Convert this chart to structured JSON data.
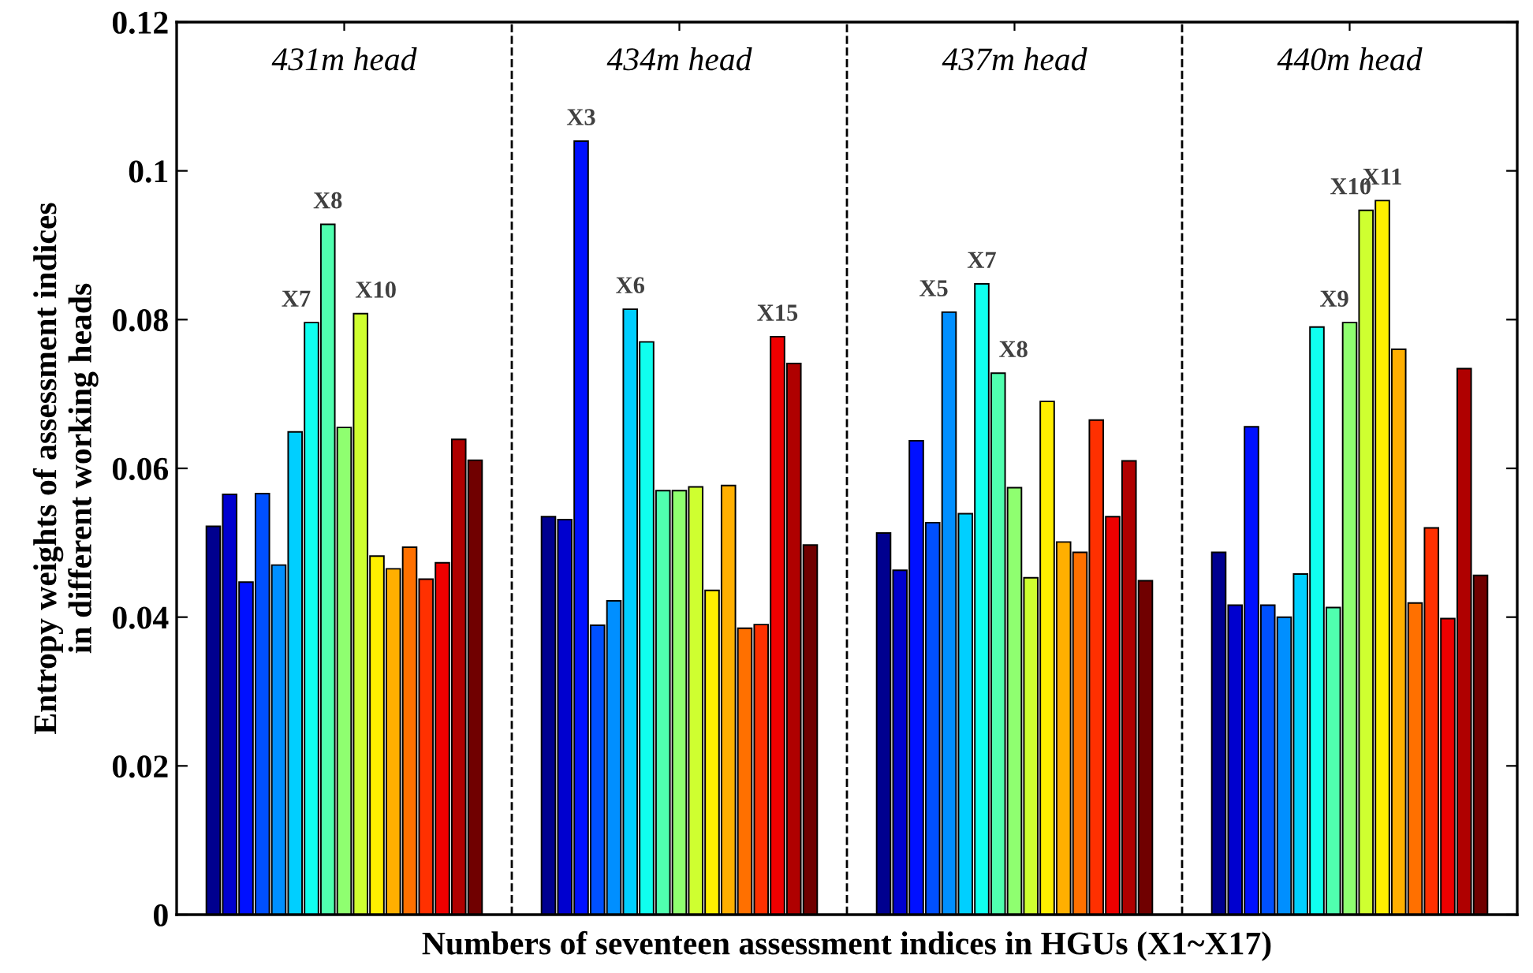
{
  "chart_data": {
    "type": "bar",
    "xlabel": "Numbers of seventeen assessment indices in HGUs (X1~X17)",
    "ylabel": "Entropy weights of assessment indices\nin different working heads",
    "categories": [
      "431m head",
      "434m head",
      "437m head",
      "440m head"
    ],
    "series": [
      {
        "color": "#00008f",
        "values": [
          0.0522,
          0.0535,
          0.0513,
          0.0487
        ]
      },
      {
        "color": "#0000cf",
        "values": [
          0.0565,
          0.0531,
          0.0463,
          0.0416
        ]
      },
      {
        "color": "#0010ff",
        "values": [
          0.0447,
          0.104,
          0.0637,
          0.0656
        ],
        "value_labels": [
          null,
          "X3",
          null,
          null
        ]
      },
      {
        "color": "#0050ff",
        "values": [
          0.0566,
          0.0389,
          0.0527,
          0.0416
        ]
      },
      {
        "color": "#008fff",
        "values": [
          0.047,
          0.0422,
          0.081,
          0.04
        ],
        "value_labels": [
          null,
          null,
          "X5",
          null
        ]
      },
      {
        "color": "#00cfff",
        "values": [
          0.0649,
          0.0814,
          0.0539,
          0.0458
        ],
        "value_labels": [
          null,
          "X6",
          null,
          null
        ]
      },
      {
        "color": "#10ffef",
        "values": [
          0.0796,
          0.077,
          0.0848,
          0.079
        ],
        "value_labels": [
          "X7",
          null,
          "X7",
          null
        ]
      },
      {
        "color": "#50ffaf",
        "values": [
          0.0928,
          0.057,
          0.0728,
          0.0413
        ],
        "value_labels": [
          "X8",
          null,
          "X8",
          null
        ]
      },
      {
        "color": "#8fff70",
        "values": [
          0.0655,
          0.057,
          0.0574,
          0.0796
        ],
        "value_labels": [
          null,
          null,
          null,
          "X9"
        ]
      },
      {
        "color": "#cfff30",
        "values": [
          0.0808,
          0.0575,
          0.0453,
          0.0947
        ],
        "value_labels": [
          "X10",
          null,
          null,
          "X10"
        ]
      },
      {
        "color": "#ffef00",
        "values": [
          0.0482,
          0.0436,
          0.069,
          0.096
        ],
        "value_labels": [
          null,
          null,
          null,
          "X11"
        ]
      },
      {
        "color": "#ffaf00",
        "values": [
          0.0465,
          0.0577,
          0.0501,
          0.076
        ]
      },
      {
        "color": "#ff7000",
        "values": [
          0.0494,
          0.0385,
          0.0487,
          0.0419
        ]
      },
      {
        "color": "#ff3000",
        "values": [
          0.0451,
          0.039,
          0.0665,
          0.052
        ]
      },
      {
        "color": "#ef0000",
        "values": [
          0.0473,
          0.0777,
          0.0535,
          0.0398
        ],
        "value_labels": [
          null,
          "X15",
          null,
          null
        ]
      },
      {
        "color": "#af0000",
        "values": [
          0.0639,
          0.0741,
          0.061,
          0.0734
        ]
      },
      {
        "color": "#700000",
        "values": [
          0.0611,
          0.0497,
          0.0449,
          0.0456
        ]
      }
    ],
    "ylim": [
      0,
      0.12
    ],
    "yticks": [
      0,
      0.02,
      0.04,
      0.06,
      0.08,
      0.1,
      0.12
    ],
    "tick_labels": "y",
    "grid": false,
    "legend": false
  }
}
